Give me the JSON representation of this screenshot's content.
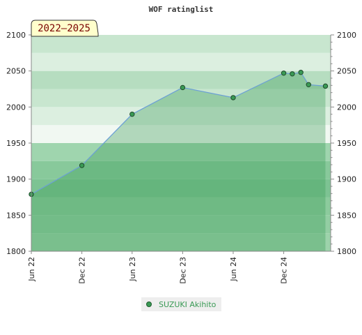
{
  "chart_data": {
    "type": "area",
    "title": "WOF ratinglist",
    "badge": "2022–2025",
    "ylim": [
      1800,
      2100
    ],
    "yticks": [
      1800,
      1850,
      1900,
      1950,
      2000,
      2050,
      2100
    ],
    "ytick_labels": [
      "1800",
      "1850",
      "1900",
      "1950",
      "2000",
      "2050",
      "2100"
    ],
    "xlim": [
      "2022-06-01",
      "2025-05-20"
    ],
    "xticks": [
      "2022-06-01",
      "2022-12-01",
      "2023-06-01",
      "2023-12-01",
      "2024-06-01",
      "2024-12-01"
    ],
    "xtick_labels": [
      "Jun 22",
      "Dec 22",
      "Jun 23",
      "Dec 23",
      "Jun 24",
      "Dec 24"
    ],
    "grid": true,
    "legend_position": "bottom",
    "series": [
      {
        "name": "SUZUKI Akihito",
        "color": "#3a9a55",
        "points": [
          {
            "x": "2022-06-01",
            "y": 1879
          },
          {
            "x": "2022-12-01",
            "y": 1919
          },
          {
            "x": "2023-06-01",
            "y": 1990
          },
          {
            "x": "2023-12-01",
            "y": 2027
          },
          {
            "x": "2024-06-01",
            "y": 2013
          },
          {
            "x": "2024-12-01",
            "y": 2047
          },
          {
            "x": "2025-01-01",
            "y": 2046
          },
          {
            "x": "2025-02-01",
            "y": 2048
          },
          {
            "x": "2025-03-01",
            "y": 2031
          },
          {
            "x": "2025-05-01",
            "y": 2029
          }
        ]
      }
    ]
  }
}
